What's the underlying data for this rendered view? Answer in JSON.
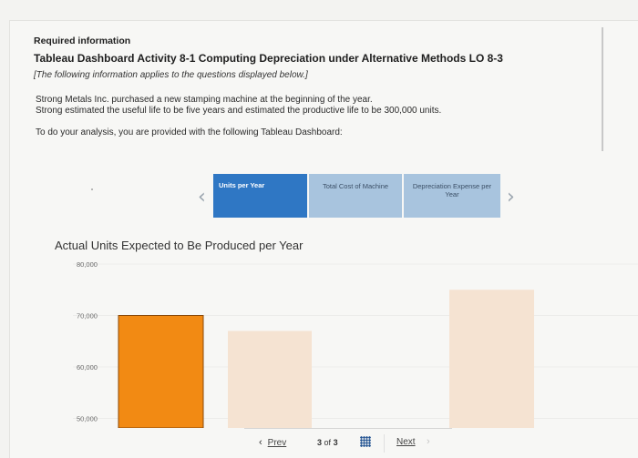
{
  "header": {
    "required": "Required information",
    "title": "Tableau Dashboard Activity 8-1 Computing Depreciation under Alternative Methods LO 8-3",
    "note": "[The following information applies to the questions displayed below.]"
  },
  "body": {
    "line1": "Strong Metals Inc. purchased a new stamping machine at the beginning of the year.",
    "line2": "Strong estimated the useful life to be five years and estimated the productive life to be 300,000 units.",
    "line3": "To do your analysis, you are provided with the following Tableau Dashboard:"
  },
  "dashboard": {
    "tabs": [
      {
        "label": "Units per Year",
        "active": true
      },
      {
        "label": "Total Cost of Machine",
        "active": false
      },
      {
        "label": "Depreciation Expense per Year",
        "active": false
      }
    ],
    "prev_icon": "chevron-left-icon",
    "next_icon": "chevron-right-icon"
  },
  "chart_data": {
    "type": "bar",
    "title": "Actual Units Expected to Be Produced per Year",
    "yticks": [
      "80,000",
      "70,000",
      "60,000",
      "50,000"
    ],
    "ylim_visible": [
      50000,
      80000
    ],
    "bars": [
      {
        "value": 70000,
        "color": "#f28a13",
        "highlight": true
      },
      {
        "value": 67000,
        "color": "#f5e3d2",
        "highlight": false
      },
      {
        "value": 0,
        "color": "#f5e3d2",
        "highlight": false
      },
      {
        "value": 75000,
        "color": "#f5e3d2",
        "highlight": false
      }
    ]
  },
  "navigation": {
    "prev_label": "Prev",
    "page_current": "3",
    "page_of": "of",
    "page_total": "3",
    "next_label": "Next",
    "grid_icon": "grid-icon"
  }
}
